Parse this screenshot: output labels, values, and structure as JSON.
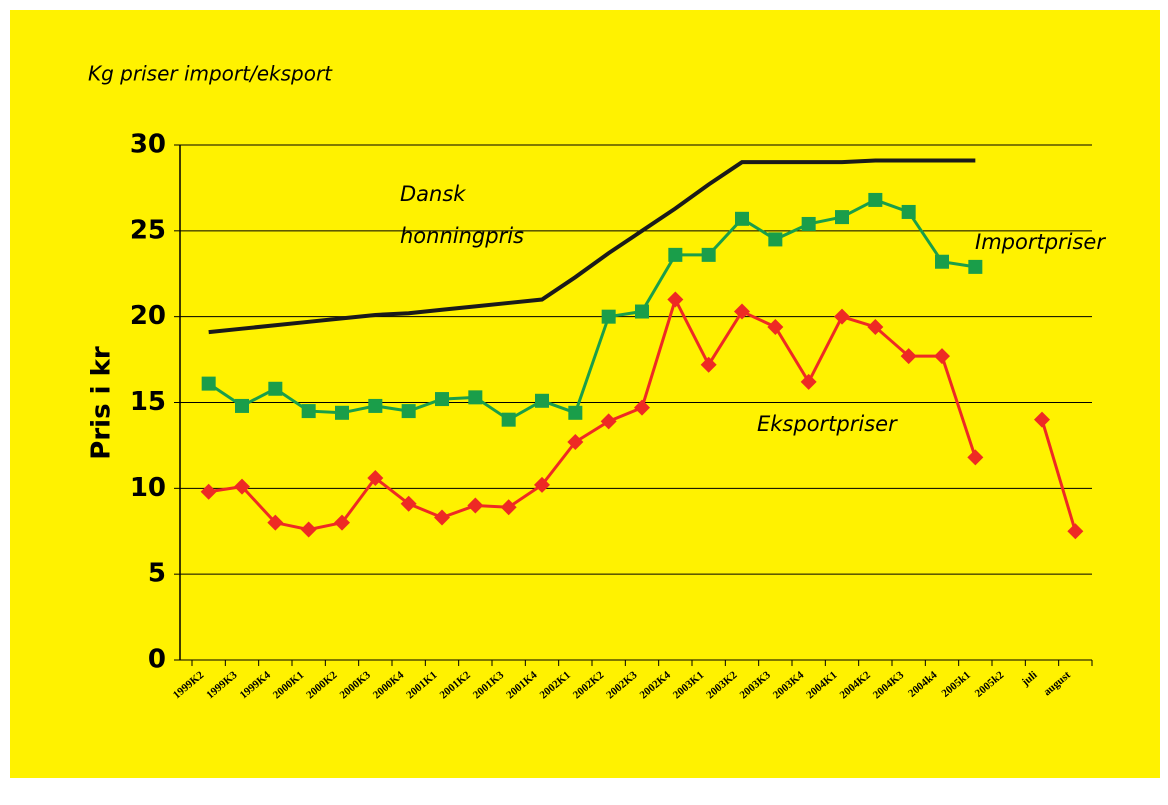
{
  "chart_data": {
    "type": "line",
    "title": "Kg priser import/eksport",
    "ylabel": "Pris i kr",
    "categories": [
      "1999K2",
      "1999K3",
      "1999K4",
      "2000K1",
      "2000K2",
      "2000K3",
      "2000K4",
      "2001K1",
      "2001K2",
      "2001K3",
      "2001K4",
      "2002K1",
      "2002K2",
      "2002K3",
      "2002K4",
      "2003K1",
      "2003K2",
      "2003K3",
      "2003K4",
      "2004K1",
      "2004K2",
      "2004K3",
      "2004k4",
      "2005k1",
      "2005k2",
      "juli",
      "august"
    ],
    "series": [
      {
        "name": "Importpriser",
        "color": "#1a9e4a",
        "marker": "square",
        "values": [
          16.1,
          14.8,
          15.8,
          14.5,
          14.4,
          14.8,
          14.5,
          15.2,
          15.3,
          14.0,
          15.1,
          14.4,
          20.0,
          20.3,
          23.6,
          23.6,
          25.7,
          24.5,
          25.4,
          25.8,
          26.8,
          26.1,
          23.2,
          22.9,
          null,
          null,
          null
        ]
      },
      {
        "name": "Eksportpriser",
        "color": "#ee2a24",
        "marker": "diamond",
        "values": [
          9.8,
          10.1,
          8.0,
          7.6,
          8.0,
          10.6,
          9.1,
          8.3,
          9.0,
          8.9,
          10.2,
          12.7,
          13.9,
          14.7,
          21.0,
          17.2,
          20.3,
          19.4,
          16.2,
          20.0,
          19.4,
          17.7,
          17.7,
          11.8,
          null,
          14.0,
          7.5
        ]
      },
      {
        "color": "#1a1a1a",
        "marker": "none",
        "values": [
          19.1,
          19.3,
          19.5,
          19.7,
          19.9,
          20.1,
          20.2,
          20.4,
          20.6,
          20.8,
          21.0,
          22.3,
          23.7,
          25.0,
          26.3,
          27.7,
          29.0,
          29.0,
          29.0,
          29.0,
          29.1,
          29.1,
          29.1,
          29.1,
          null,
          null,
          null
        ]
      }
    ],
    "annotations": [
      "Dansk",
      "honningpris"
    ],
    "ylim": [
      0,
      30
    ],
    "yticks": [
      0,
      5,
      10,
      15,
      20,
      25,
      30
    ],
    "grid": true
  }
}
